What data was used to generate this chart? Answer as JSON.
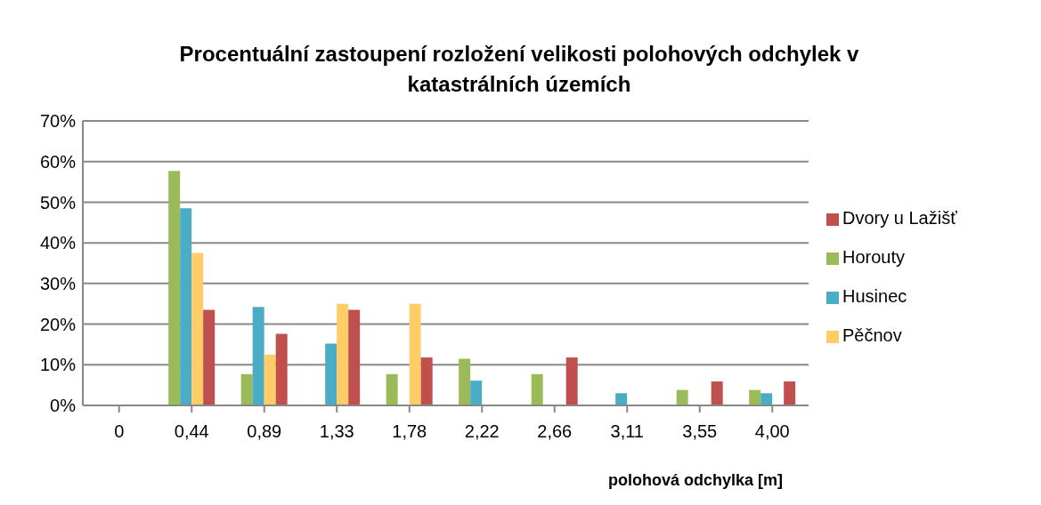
{
  "chart_data": {
    "type": "bar",
    "title": "Procentuální zastoupení rozložení velikosti polohových odchylek v katastrálních územích",
    "xlabel": "polohová odchylka [m]",
    "categories": [
      "0",
      "0,44",
      "0,89",
      "1,33",
      "1,78",
      "2,22",
      "2,66",
      "3,11",
      "3,55",
      "4,00"
    ],
    "series": [
      {
        "name": "Horouty",
        "color": "#9bbb59",
        "values": [
          0,
          57.7,
          7.7,
          0,
          7.7,
          11.5,
          7.7,
          0,
          3.8,
          3.8
        ]
      },
      {
        "name": "Husinec",
        "color": "#4bacc6",
        "values": [
          0,
          48.5,
          24.2,
          15.2,
          0,
          6.1,
          0,
          3.0,
          0,
          3.0
        ]
      },
      {
        "name": "Pěčnov",
        "color": "#ffcc66",
        "values": [
          0,
          37.5,
          12.5,
          25,
          25,
          0,
          0,
          0,
          0,
          0
        ]
      },
      {
        "name": "Dvory u Lažišť",
        "color": "#c0504d",
        "values": [
          0,
          23.5,
          17.6,
          23.5,
          11.8,
          0,
          11.8,
          0,
          5.9,
          5.9
        ]
      }
    ],
    "ylim": [
      0,
      70
    ],
    "yticks": [
      {
        "value": 0,
        "label": "0%"
      },
      {
        "value": 10,
        "label": "10%"
      },
      {
        "value": 20,
        "label": "20%"
      },
      {
        "value": 30,
        "label": "30%"
      },
      {
        "value": 40,
        "label": "40%"
      },
      {
        "value": 50,
        "label": "50%"
      },
      {
        "value": 60,
        "label": "60%"
      },
      {
        "value": 70,
        "label": "70%"
      }
    ],
    "grid": "y",
    "legend": "right"
  }
}
